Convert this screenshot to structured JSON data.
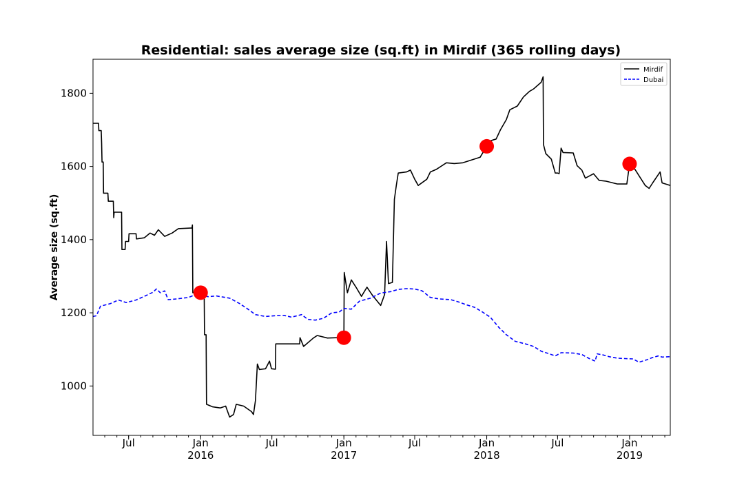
{
  "chart_data": {
    "type": "line",
    "title": "Residential: sales average size (sq.ft) in Mirdif (365 rolling days)",
    "xlabel": "",
    "ylabel": "Average size (sq.ft)",
    "xlim": [
      "2015-04-01",
      "2019-04-15"
    ],
    "ylim": [
      865,
      1893
    ],
    "y_ticks": [
      1000,
      1200,
      1400,
      1600,
      1800
    ],
    "x_ticks": [
      {
        "date": "2015-07-01",
        "label": "Jul",
        "sublabel": ""
      },
      {
        "date": "2016-01-01",
        "label": "Jan",
        "sublabel": "2016"
      },
      {
        "date": "2016-07-01",
        "label": "Jul",
        "sublabel": ""
      },
      {
        "date": "2017-01-01",
        "label": "Jan",
        "sublabel": "2017"
      },
      {
        "date": "2017-07-01",
        "label": "Jul",
        "sublabel": ""
      },
      {
        "date": "2018-01-01",
        "label": "Jan",
        "sublabel": "2018"
      },
      {
        "date": "2018-07-01",
        "label": "Jul",
        "sublabel": ""
      },
      {
        "date": "2019-01-01",
        "label": "Jan",
        "sublabel": "2019"
      }
    ],
    "grid": false,
    "legend_position": "top-right",
    "series": [
      {
        "name": "Mirdif",
        "color": "#000000",
        "style": "solid",
        "points": [
          [
            "2015-04-01",
            1718
          ],
          [
            "2015-04-15",
            1718
          ],
          [
            "2015-04-16",
            1698
          ],
          [
            "2015-04-22",
            1698
          ],
          [
            "2015-04-23",
            1665
          ],
          [
            "2015-04-24",
            1612
          ],
          [
            "2015-04-27",
            1612
          ],
          [
            "2015-04-28",
            1527
          ],
          [
            "2015-05-09",
            1527
          ],
          [
            "2015-05-10",
            1505
          ],
          [
            "2015-05-23",
            1505
          ],
          [
            "2015-05-24",
            1460
          ],
          [
            "2015-05-25",
            1475
          ],
          [
            "2015-06-13",
            1475
          ],
          [
            "2015-06-14",
            1373
          ],
          [
            "2015-06-22",
            1373
          ],
          [
            "2015-06-23",
            1395
          ],
          [
            "2015-07-01",
            1395
          ],
          [
            "2015-07-02",
            1416
          ],
          [
            "2015-07-20",
            1416
          ],
          [
            "2015-07-21",
            1402
          ],
          [
            "2015-08-10",
            1405
          ],
          [
            "2015-08-25",
            1418
          ],
          [
            "2015-09-05",
            1412
          ],
          [
            "2015-09-15",
            1427
          ],
          [
            "2015-10-01",
            1409
          ],
          [
            "2015-10-20",
            1418
          ],
          [
            "2015-11-05",
            1430
          ],
          [
            "2015-12-10",
            1432
          ],
          [
            "2015-12-11",
            1440
          ],
          [
            "2015-12-12",
            1255
          ],
          [
            "2016-01-01",
            1255
          ],
          [
            "2016-01-10",
            1255
          ],
          [
            "2016-01-11",
            1140
          ],
          [
            "2016-01-15",
            1140
          ],
          [
            "2016-01-16",
            950
          ],
          [
            "2016-02-01",
            943
          ],
          [
            "2016-02-20",
            940
          ],
          [
            "2016-03-05",
            945
          ],
          [
            "2016-03-15",
            915
          ],
          [
            "2016-03-25",
            922
          ],
          [
            "2016-04-01",
            950
          ],
          [
            "2016-04-20",
            945
          ],
          [
            "2016-05-10",
            930
          ],
          [
            "2016-05-15",
            922
          ],
          [
            "2016-05-20",
            960
          ],
          [
            "2016-05-25",
            1060
          ],
          [
            "2016-05-30",
            1045
          ],
          [
            "2016-06-15",
            1047
          ],
          [
            "2016-06-25",
            1068
          ],
          [
            "2016-06-30",
            1047
          ],
          [
            "2016-07-10",
            1046
          ],
          [
            "2016-07-11",
            1115
          ],
          [
            "2016-09-10",
            1115
          ],
          [
            "2016-09-11",
            1132
          ],
          [
            "2016-09-20",
            1108
          ],
          [
            "2016-10-15",
            1131
          ],
          [
            "2016-10-25",
            1138
          ],
          [
            "2016-11-20",
            1131
          ],
          [
            "2016-12-15",
            1132
          ],
          [
            "2017-01-01",
            1132
          ],
          [
            "2017-01-02",
            1310
          ],
          [
            "2017-01-10",
            1255
          ],
          [
            "2017-01-20",
            1290
          ],
          [
            "2017-02-01",
            1270
          ],
          [
            "2017-02-15",
            1245
          ],
          [
            "2017-03-01",
            1270
          ],
          [
            "2017-03-15",
            1248
          ],
          [
            "2017-04-05",
            1220
          ],
          [
            "2017-04-15",
            1250
          ],
          [
            "2017-04-20",
            1395
          ],
          [
            "2017-04-25",
            1280
          ],
          [
            "2017-05-05",
            1283
          ],
          [
            "2017-05-10",
            1510
          ],
          [
            "2017-05-15",
            1548
          ],
          [
            "2017-05-20",
            1582
          ],
          [
            "2017-06-10",
            1585
          ],
          [
            "2017-06-20",
            1590
          ],
          [
            "2017-07-01",
            1565
          ],
          [
            "2017-07-10",
            1548
          ],
          [
            "2017-08-01",
            1565
          ],
          [
            "2017-08-10",
            1585
          ],
          [
            "2017-08-25",
            1592
          ],
          [
            "2017-09-20",
            1610
          ],
          [
            "2017-10-10",
            1608
          ],
          [
            "2017-11-01",
            1610
          ],
          [
            "2017-12-15",
            1625
          ],
          [
            "2018-01-01",
            1655
          ],
          [
            "2018-01-10",
            1670
          ],
          [
            "2018-01-25",
            1675
          ],
          [
            "2018-02-05",
            1700
          ],
          [
            "2018-02-20",
            1728
          ],
          [
            "2018-03-01",
            1755
          ],
          [
            "2018-03-20",
            1765
          ],
          [
            "2018-04-05",
            1790
          ],
          [
            "2018-04-20",
            1805
          ],
          [
            "2018-05-01",
            1812
          ],
          [
            "2018-05-20",
            1830
          ],
          [
            "2018-05-25",
            1845
          ],
          [
            "2018-05-26",
            1660
          ],
          [
            "2018-06-01",
            1635
          ],
          [
            "2018-06-15",
            1620
          ],
          [
            "2018-06-25",
            1582
          ],
          [
            "2018-07-01",
            1582
          ],
          [
            "2018-07-05",
            1580
          ],
          [
            "2018-07-10",
            1650
          ],
          [
            "2018-07-15",
            1638
          ],
          [
            "2018-08-10",
            1637
          ],
          [
            "2018-08-20",
            1602
          ],
          [
            "2018-09-01",
            1590
          ],
          [
            "2018-09-10",
            1568
          ],
          [
            "2018-10-01",
            1580
          ],
          [
            "2018-10-15",
            1562
          ],
          [
            "2018-11-01",
            1560
          ],
          [
            "2018-12-01",
            1552
          ],
          [
            "2018-12-25",
            1552
          ],
          [
            "2019-01-01",
            1607
          ],
          [
            "2019-01-10",
            1600
          ],
          [
            "2019-01-25",
            1575
          ],
          [
            "2019-02-10",
            1548
          ],
          [
            "2019-02-20",
            1540
          ],
          [
            "2019-03-01",
            1555
          ],
          [
            "2019-03-20",
            1585
          ],
          [
            "2019-03-25",
            1555
          ],
          [
            "2019-04-15",
            1548
          ]
        ]
      },
      {
        "name": "Dubai",
        "color": "#0000ff",
        "style": "dashed",
        "points": [
          [
            "2015-04-01",
            1190
          ],
          [
            "2015-04-10",
            1192
          ],
          [
            "2015-04-20",
            1218
          ],
          [
            "2015-05-15",
            1225
          ],
          [
            "2015-06-05",
            1235
          ],
          [
            "2015-06-25",
            1228
          ],
          [
            "2015-07-20",
            1235
          ],
          [
            "2015-08-10",
            1245
          ],
          [
            "2015-09-01",
            1256
          ],
          [
            "2015-09-10",
            1265
          ],
          [
            "2015-09-20",
            1255
          ],
          [
            "2015-10-01",
            1260
          ],
          [
            "2015-10-10",
            1236
          ],
          [
            "2015-11-01",
            1238
          ],
          [
            "2015-12-01",
            1242
          ],
          [
            "2015-12-15",
            1248
          ],
          [
            "2016-01-01",
            1250
          ],
          [
            "2016-01-20",
            1244
          ],
          [
            "2016-02-10",
            1246
          ],
          [
            "2016-03-15",
            1240
          ],
          [
            "2016-04-10",
            1225
          ],
          [
            "2016-05-01",
            1210
          ],
          [
            "2016-05-20",
            1195
          ],
          [
            "2016-06-15",
            1190
          ],
          [
            "2016-07-10",
            1192
          ],
          [
            "2016-08-01",
            1193
          ],
          [
            "2016-08-20",
            1188
          ],
          [
            "2016-09-15",
            1195
          ],
          [
            "2016-10-01",
            1182
          ],
          [
            "2016-10-20",
            1180
          ],
          [
            "2016-11-10",
            1185
          ],
          [
            "2016-12-01",
            1200
          ],
          [
            "2016-12-20",
            1202
          ],
          [
            "2017-01-01",
            1212
          ],
          [
            "2017-01-20",
            1210
          ],
          [
            "2017-02-10",
            1232
          ],
          [
            "2017-03-10",
            1240
          ],
          [
            "2017-04-05",
            1254
          ],
          [
            "2017-05-01",
            1258
          ],
          [
            "2017-05-20",
            1264
          ],
          [
            "2017-06-10",
            1266
          ],
          [
            "2017-07-01",
            1265
          ],
          [
            "2017-07-20",
            1260
          ],
          [
            "2017-08-10",
            1242
          ],
          [
            "2017-09-01",
            1238
          ],
          [
            "2017-10-01",
            1236
          ],
          [
            "2017-10-20",
            1230
          ],
          [
            "2017-11-10",
            1222
          ],
          [
            "2017-12-01",
            1215
          ],
          [
            "2017-12-20",
            1203
          ],
          [
            "2018-01-10",
            1188
          ],
          [
            "2018-02-01",
            1160
          ],
          [
            "2018-02-20",
            1140
          ],
          [
            "2018-03-15",
            1122
          ],
          [
            "2018-04-10",
            1115
          ],
          [
            "2018-05-01",
            1108
          ],
          [
            "2018-05-20",
            1095
          ],
          [
            "2018-06-10",
            1088
          ],
          [
            "2018-06-25",
            1082
          ],
          [
            "2018-07-10",
            1091
          ],
          [
            "2018-08-10",
            1090
          ],
          [
            "2018-09-01",
            1086
          ],
          [
            "2018-09-20",
            1075
          ],
          [
            "2018-10-05",
            1068
          ],
          [
            "2018-10-10",
            1088
          ],
          [
            "2018-10-25",
            1085
          ],
          [
            "2018-11-10",
            1080
          ],
          [
            "2018-12-01",
            1076
          ],
          [
            "2018-12-20",
            1075
          ],
          [
            "2019-01-10",
            1074
          ],
          [
            "2019-01-25",
            1065
          ],
          [
            "2019-02-15",
            1072
          ],
          [
            "2019-03-01",
            1078
          ],
          [
            "2019-03-15",
            1082
          ],
          [
            "2019-03-25",
            1079
          ],
          [
            "2019-04-15",
            1080
          ]
        ]
      }
    ],
    "markers": [
      {
        "date": "2016-01-01",
        "value": 1255,
        "color": "#ff0000"
      },
      {
        "date": "2017-01-01",
        "value": 1132,
        "color": "#ff0000"
      },
      {
        "date": "2018-01-01",
        "value": 1655,
        "color": "#ff0000"
      },
      {
        "date": "2019-01-01",
        "value": 1607,
        "color": "#ff0000"
      }
    ]
  }
}
